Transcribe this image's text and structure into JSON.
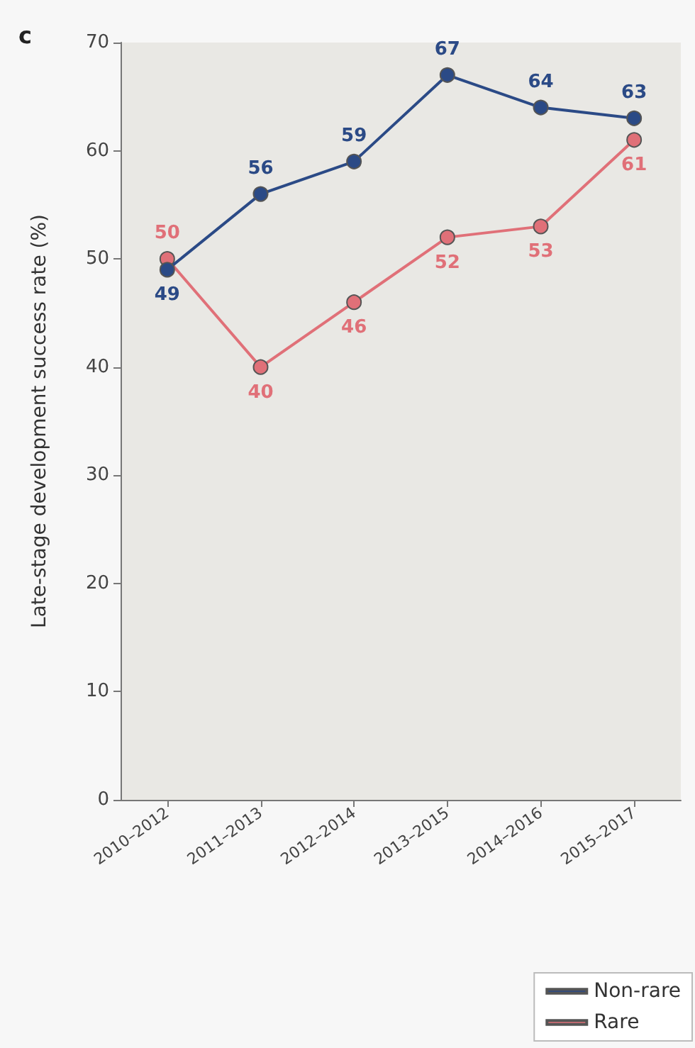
{
  "chart_data": {
    "type": "line",
    "title": "c",
    "ylabel": "Late-stage development success rate (%)",
    "categories": [
      "2010–2012",
      "2011–2013",
      "2012–2014",
      "2013–2015",
      "2014–2016",
      "2015–2017"
    ],
    "series": [
      {
        "name": "Non-rare",
        "color": "#2b4a86",
        "values": [
          49,
          56,
          59,
          67,
          64,
          63
        ]
      },
      {
        "name": "Rare",
        "color": "#e07078",
        "values": [
          50,
          40,
          46,
          52,
          53,
          61
        ]
      }
    ],
    "ylim": [
      0,
      70
    ],
    "yticks": [
      0,
      10,
      20,
      30,
      40,
      50,
      60,
      70
    ],
    "grid": false,
    "legend": "bottom right",
    "marker": "circle",
    "line_style": "solid",
    "data_labels": true
  }
}
